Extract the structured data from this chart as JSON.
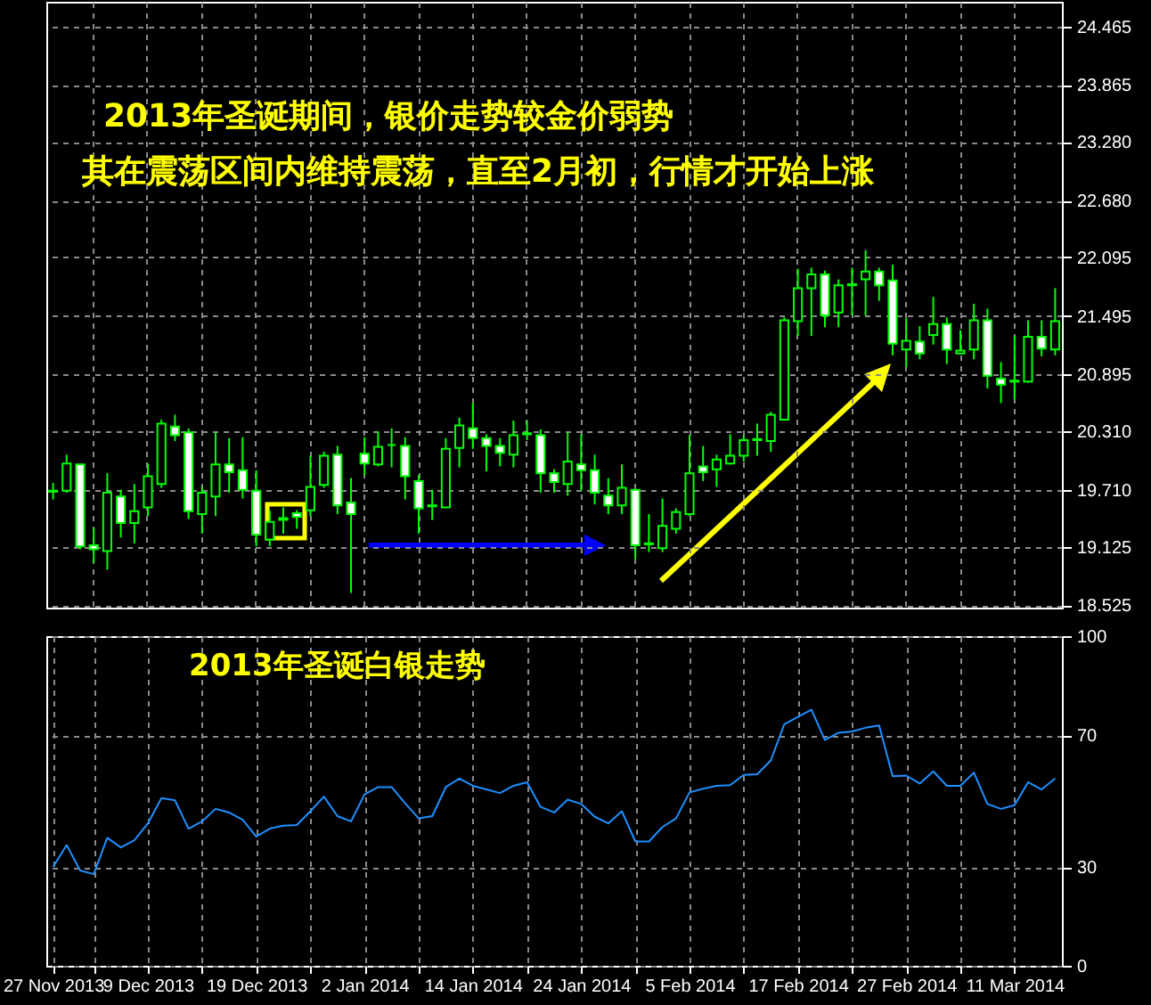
{
  "chart_data": [
    {
      "type": "candlestick",
      "color": "#00ff00",
      "grid": true,
      "tick_labels": "y",
      "annotations": [
        "2013年圣诞期间，银价走势较金价弱势",
        "其在震荡区间内维持震荡，直至2月初，行情才开始上涨"
      ],
      "categories": [
        null,
        null,
        null,
        null,
        null,
        null,
        null,
        null,
        null,
        null,
        null,
        null,
        null,
        null,
        null,
        null,
        null,
        null,
        null,
        null,
        null,
        null,
        null,
        null,
        null,
        null,
        null,
        null,
        null,
        null,
        null,
        null,
        null,
        null,
        null,
        null,
        null,
        null,
        null,
        null,
        null,
        null,
        null,
        null,
        null,
        null,
        null,
        null,
        null,
        null,
        null,
        null,
        null,
        null,
        null,
        null,
        null,
        null,
        null,
        null,
        null,
        null,
        null,
        null,
        null,
        null,
        null,
        null,
        null,
        null,
        null,
        null,
        null,
        null,
        null
      ],
      "ohlc": [
        [
          19.7,
          19.78,
          19.61,
          19.69
        ],
        [
          19.7,
          20.07,
          19.68,
          19.98
        ],
        [
          19.97,
          19.97,
          19.1,
          19.13
        ],
        [
          19.14,
          19.32,
          18.96,
          19.1
        ],
        [
          19.08,
          19.88,
          18.89,
          19.68
        ],
        [
          19.64,
          19.71,
          19.22,
          19.37
        ],
        [
          19.37,
          19.77,
          19.16,
          19.49
        ],
        [
          19.53,
          19.98,
          19.44,
          19.85
        ],
        [
          19.77,
          20.43,
          19.73,
          20.39
        ],
        [
          20.36,
          20.48,
          20.21,
          20.27
        ],
        [
          20.3,
          20.34,
          19.41,
          19.49
        ],
        [
          19.46,
          19.74,
          19.26,
          19.68
        ],
        [
          19.64,
          20.3,
          19.44,
          19.97
        ],
        [
          19.97,
          20.24,
          19.68,
          19.89
        ],
        [
          19.91,
          20.25,
          19.62,
          19.71
        ],
        [
          19.7,
          19.91,
          19.13,
          19.25
        ],
        [
          19.2,
          19.5,
          19.13,
          19.38
        ],
        [
          19.4,
          19.53,
          19.26,
          19.42
        ],
        [
          19.47,
          19.5,
          19.31,
          19.43
        ],
        [
          19.5,
          20.06,
          19.44,
          19.74
        ],
        [
          19.76,
          20.1,
          19.73,
          20.06
        ],
        [
          20.07,
          20.16,
          19.46,
          19.55
        ],
        [
          19.58,
          19.83,
          18.65,
          19.46
        ],
        [
          20.08,
          20.25,
          19.86,
          19.98
        ],
        [
          19.97,
          20.31,
          19.95,
          20.15
        ],
        [
          20.17,
          20.34,
          19.94,
          20.17
        ],
        [
          20.16,
          20.25,
          19.61,
          19.85
        ],
        [
          19.8,
          19.86,
          19.26,
          19.52
        ],
        [
          19.55,
          19.71,
          19.4,
          19.54
        ],
        [
          19.53,
          20.24,
          19.53,
          20.13
        ],
        [
          20.14,
          20.45,
          19.94,
          20.37
        ],
        [
          20.34,
          20.6,
          20.13,
          20.24
        ],
        [
          20.24,
          20.28,
          19.9,
          20.16
        ],
        [
          20.16,
          20.24,
          19.95,
          20.09
        ],
        [
          20.07,
          20.42,
          19.94,
          20.27
        ],
        [
          20.29,
          20.42,
          20.22,
          20.28
        ],
        [
          20.27,
          20.33,
          19.68,
          19.88
        ],
        [
          19.88,
          19.92,
          19.68,
          19.79
        ],
        [
          19.77,
          20.3,
          19.65,
          20.0
        ],
        [
          19.97,
          20.28,
          19.7,
          19.91
        ],
        [
          19.91,
          20.07,
          19.56,
          19.68
        ],
        [
          19.65,
          19.83,
          19.46,
          19.55
        ],
        [
          19.55,
          19.97,
          19.46,
          19.73
        ],
        [
          19.71,
          19.71,
          19.0,
          19.14
        ],
        [
          19.16,
          19.46,
          19.07,
          19.15
        ],
        [
          19.11,
          19.62,
          19.07,
          19.34
        ],
        [
          19.31,
          19.52,
          19.26,
          19.48
        ],
        [
          19.46,
          20.27,
          19.44,
          19.88
        ],
        [
          19.95,
          20.16,
          19.8,
          19.89
        ],
        [
          19.92,
          20.07,
          19.74,
          20.02
        ],
        [
          19.98,
          20.28,
          19.97,
          20.06
        ],
        [
          20.06,
          20.27,
          20.0,
          20.22
        ],
        [
          20.22,
          20.39,
          20.06,
          20.23
        ],
        [
          20.21,
          20.51,
          20.1,
          20.48
        ],
        [
          20.43,
          21.48,
          20.43,
          21.45
        ],
        [
          21.44,
          21.98,
          21.29,
          21.78
        ],
        [
          21.78,
          21.99,
          21.29,
          21.92
        ],
        [
          21.92,
          21.96,
          21.38,
          21.5
        ],
        [
          21.53,
          21.87,
          21.38,
          21.81
        ],
        [
          21.81,
          21.99,
          21.5,
          21.82
        ],
        [
          21.87,
          22.17,
          21.5,
          21.95
        ],
        [
          21.95,
          21.99,
          21.65,
          21.81
        ],
        [
          21.86,
          22.02,
          21.09,
          21.21
        ],
        [
          21.15,
          21.47,
          20.97,
          21.24
        ],
        [
          21.23,
          21.39,
          21.05,
          21.11
        ],
        [
          21.3,
          21.69,
          21.2,
          21.41
        ],
        [
          21.41,
          21.48,
          21.0,
          21.15
        ],
        [
          21.11,
          21.35,
          21.11,
          21.14
        ],
        [
          21.15,
          21.62,
          21.05,
          21.45
        ],
        [
          21.45,
          21.57,
          20.75,
          20.88
        ],
        [
          20.85,
          21.02,
          20.6,
          20.79
        ],
        [
          20.82,
          21.29,
          20.64,
          20.83
        ],
        [
          20.82,
          21.45,
          20.81,
          21.28
        ],
        [
          21.28,
          21.45,
          21.08,
          21.16
        ],
        [
          21.15,
          21.78,
          21.09,
          21.44
        ]
      ],
      "ylim": [
        18.5,
        24.72
      ],
      "yticks": [
        18.525,
        19.125,
        {
          "value": 19.71,
          "label": "19.710"
        },
        {
          "value": 20.31,
          "label": "20.310"
        },
        20.895,
        21.495,
        22.095,
        {
          "value": 22.68,
          "label": "22.680"
        },
        {
          "value": 23.28,
          "label": "23.280"
        },
        23.865,
        24.465
      ]
    },
    {
      "type": "line",
      "grid": true,
      "title": "2013年圣诞白银走势",
      "categories": [
        "27 Nov 2013",
        null,
        null,
        null,
        null,
        null,
        null,
        "9 Dec 2013",
        null,
        null,
        null,
        null,
        null,
        null,
        null,
        "19 Dec 2013",
        null,
        null,
        null,
        null,
        null,
        null,
        null,
        "2 Jan 2014",
        null,
        null,
        null,
        null,
        null,
        null,
        null,
        "14 Jan 2014",
        null,
        null,
        null,
        null,
        null,
        null,
        null,
        "24 Jan 2014",
        null,
        null,
        null,
        null,
        null,
        null,
        null,
        "5 Feb 2014",
        null,
        null,
        null,
        null,
        null,
        null,
        null,
        "17 Feb 2014",
        null,
        null,
        null,
        null,
        null,
        null,
        null,
        "27 Feb 2014",
        null,
        null,
        null,
        null,
        null,
        null,
        null,
        "11 Mar 2014",
        null,
        null,
        null
      ],
      "series": [
        {
          "color": "#1e90ff",
          "values": [
            30,
            36.6,
            28.9,
            27.8,
            38.8,
            35.9,
            38.1,
            43.2,
            50.9,
            50.2,
            41.6,
            43.8,
            47.6,
            46.5,
            44.3,
            39.2,
            41.6,
            42.5,
            42.7,
            46.9,
            51.3,
            45.4,
            43.8,
            52.0,
            54.2,
            54.2,
            49.3,
            44.7,
            45.4,
            54.2,
            56.8,
            54.6,
            53.5,
            52.4,
            54.6,
            55.7,
            48.2,
            46.5,
            50.4,
            49.1,
            45.2,
            43.2,
            46.9,
            37.7,
            37.7,
            42.1,
            44.7,
            52.6,
            53.7,
            54.6,
            54.8,
            57.9,
            58.1,
            62.3,
            73.3,
            75.5,
            77.7,
            68.5,
            70.7,
            71.1,
            72.2,
            72.9,
            57.5,
            57.7,
            55.3,
            59.0,
            54.6,
            54.6,
            58.6,
            49.1,
            47.6,
            48.7,
            55.7,
            53.5,
            56.8
          ]
        }
      ],
      "ylim": [
        0,
        100
      ],
      "yticks": [
        0,
        30,
        70,
        100
      ]
    }
  ]
}
